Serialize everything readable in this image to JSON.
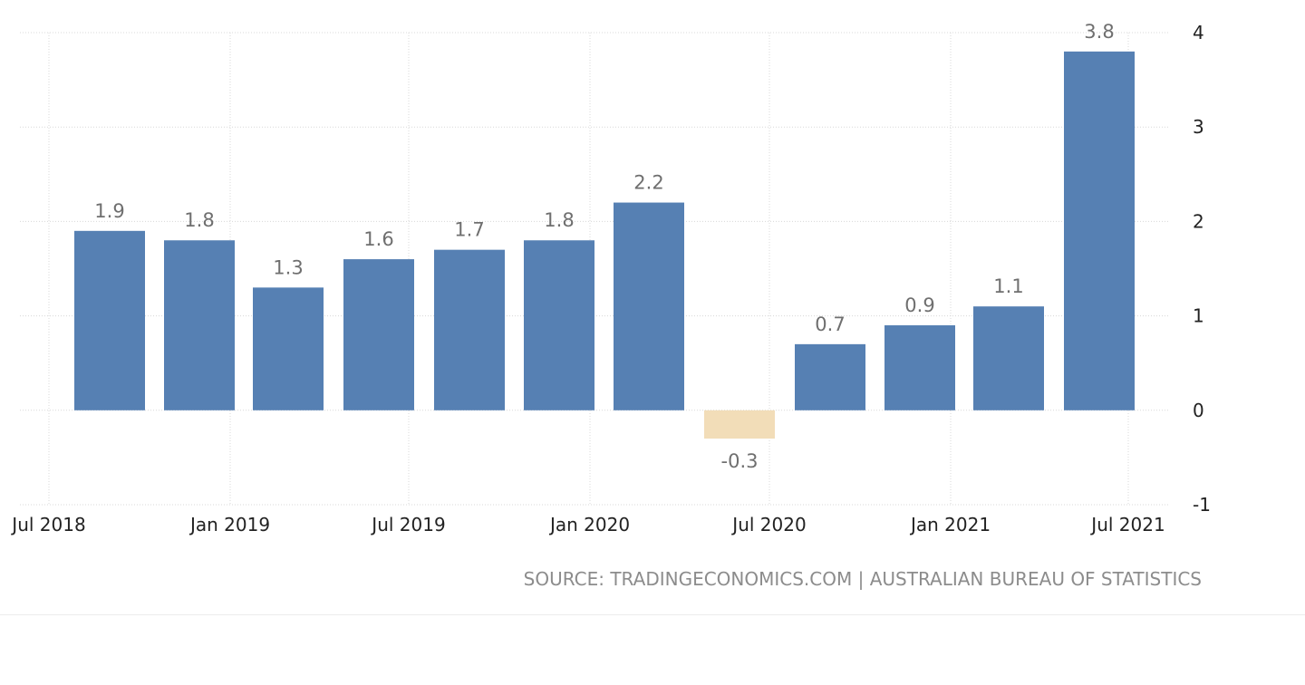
{
  "chart_data": {
    "type": "bar",
    "categories": [
      "Q3 2018",
      "Q4 2018",
      "Q1 2019",
      "Q2 2019",
      "Q3 2019",
      "Q4 2019",
      "Q1 2020",
      "Q2 2020",
      "Q3 2020",
      "Q4 2020",
      "Q1 2021",
      "Q2 2021"
    ],
    "values": [
      1.9,
      1.8,
      1.3,
      1.6,
      1.7,
      1.8,
      2.2,
      -0.3,
      0.7,
      0.9,
      1.1,
      3.8
    ],
    "value_labels": [
      "1.9",
      "1.8",
      "1.3",
      "1.6",
      "1.7",
      "1.8",
      "2.2",
      "-0.3",
      "0.7",
      "0.9",
      "1.1",
      "3.8"
    ],
    "x_ticks": [
      "Jul 2018",
      "Jan 2019",
      "Jul 2019",
      "Jan 2020",
      "Jul 2020",
      "Jan 2021",
      "Jul 2021"
    ],
    "y_ticks": [
      "4",
      "3",
      "2",
      "1",
      "0",
      "-1"
    ],
    "ylim": [
      -1,
      4
    ],
    "y_axis_side": "right",
    "grid": true,
    "title": "",
    "xlabel": "",
    "ylabel": "",
    "colors": {
      "positive": "#5680b3",
      "negative": "#f2ddb8"
    }
  },
  "source": "SOURCE: TRADINGECONOMICS.COM | AUSTRALIAN BUREAU OF STATISTICS"
}
